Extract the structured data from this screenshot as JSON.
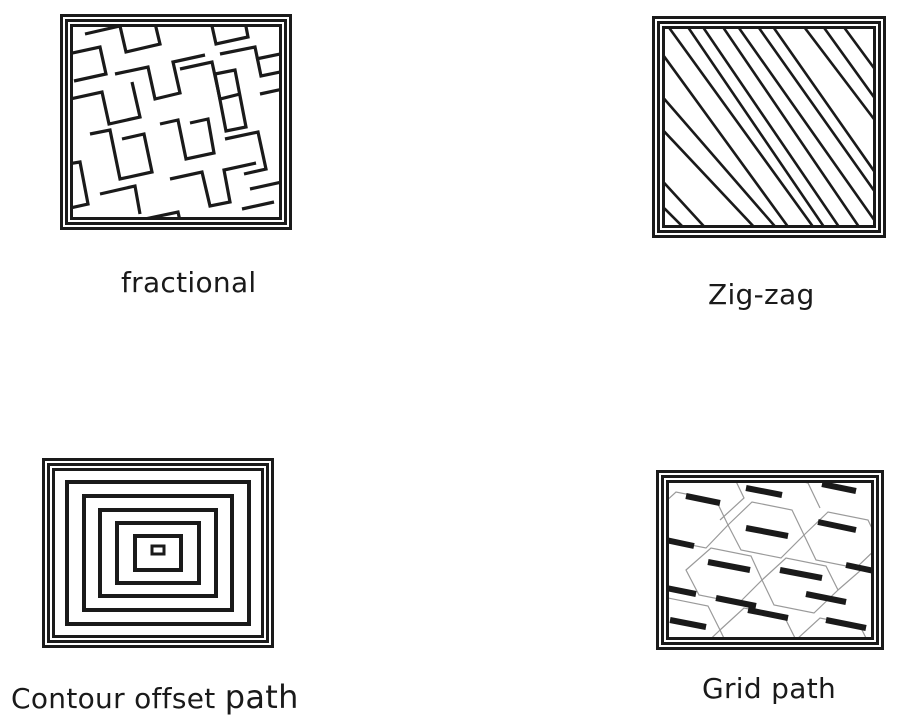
{
  "panels": [
    {
      "id": "fractional",
      "caption": "fractional"
    },
    {
      "id": "zigzag",
      "caption": "Zig-zag"
    },
    {
      "id": "contour",
      "caption_main": "Contour offset ",
      "caption_emph": "path"
    },
    {
      "id": "grid",
      "caption": "Grid path"
    }
  ],
  "colors": {
    "stroke": "#1a1a1a",
    "background": "#ffffff",
    "hex_edge": "#9a9a9a"
  }
}
